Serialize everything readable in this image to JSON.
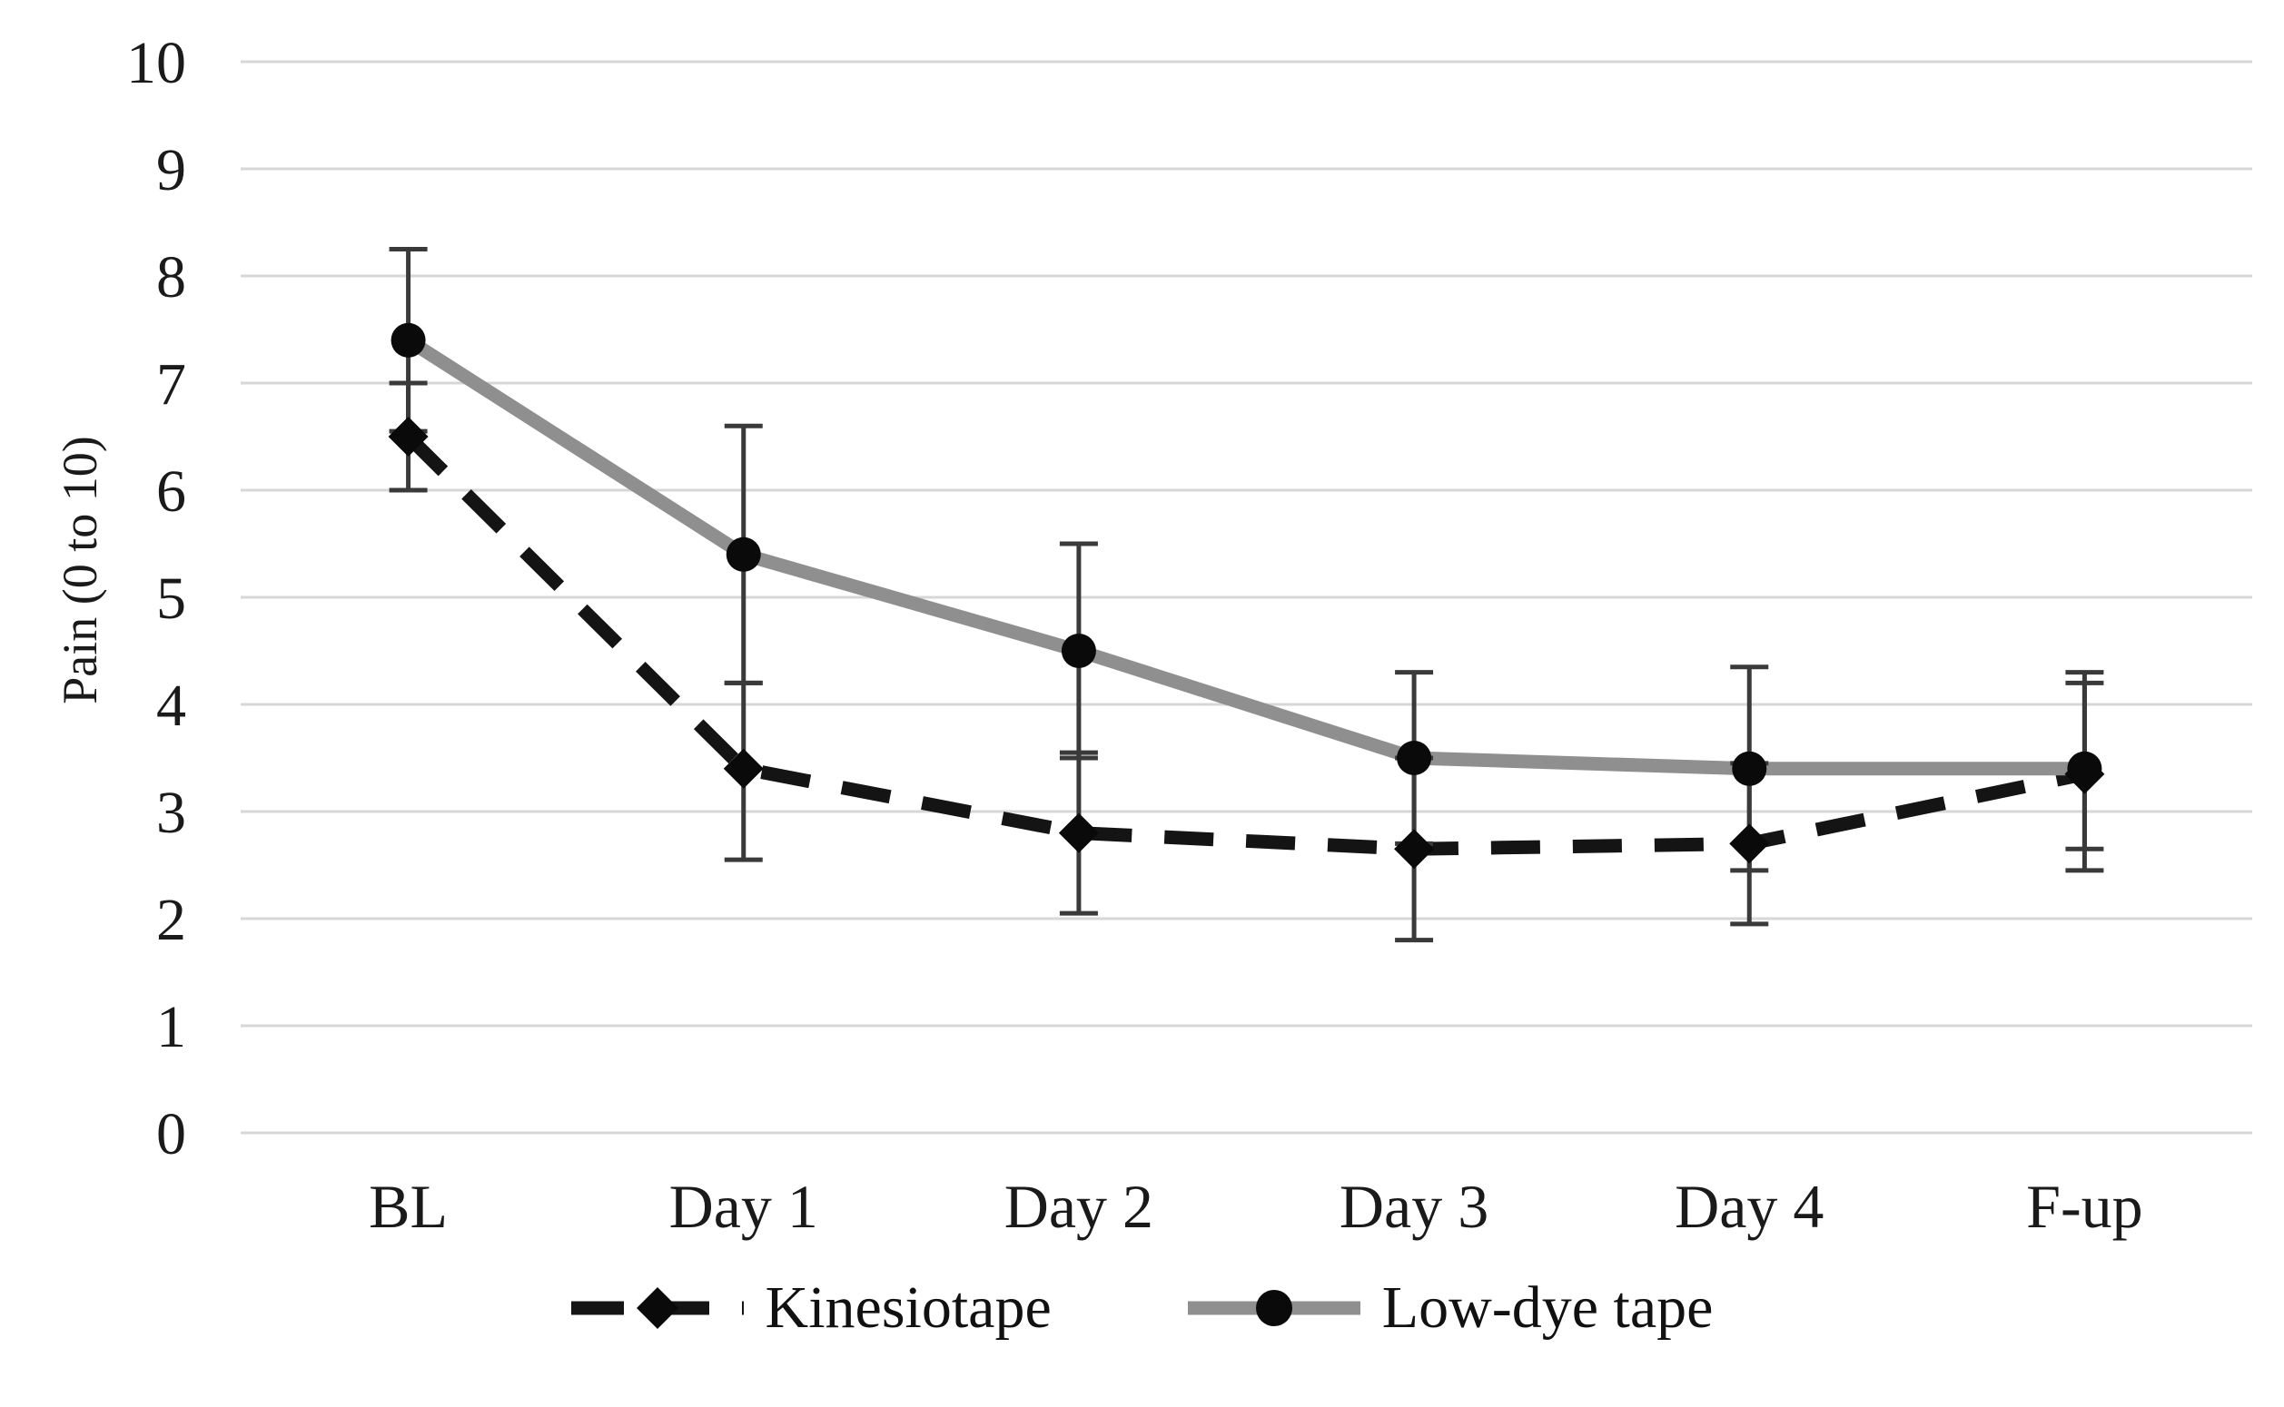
{
  "chart_data": {
    "type": "line",
    "title": "",
    "xlabel": "",
    "ylabel": "Pain (0 to 10)",
    "categories": [
      "BL",
      "Day 1",
      "Day 2",
      "Day 3",
      "Day 4",
      "F-up"
    ],
    "ylim": [
      0,
      10
    ],
    "yticks": [
      10,
      9,
      8,
      7,
      6,
      5,
      4,
      3,
      2,
      1,
      0
    ],
    "grid": "horizontal",
    "gridline_color": "#d7d7d7",
    "error_bar_color": "#3a3a3a",
    "background": "#ffffff",
    "legend_position": "bottom",
    "series": [
      {
        "name": "Kinesiotape",
        "style": "dashed",
        "color": "#141414",
        "marker": "diamond",
        "marker_color": "#0a0a0a",
        "values": [
          6.5,
          3.4,
          2.8,
          2.65,
          2.7,
          3.35
        ],
        "error_low": [
          6.0,
          2.55,
          2.05,
          1.8,
          1.95,
          2.65
        ],
        "error_high": [
          7.0,
          4.2,
          3.55,
          3.5,
          3.45,
          4.2
        ]
      },
      {
        "name": "Low-dye tape",
        "style": "solid",
        "color": "#8f8f8f",
        "marker": "circle",
        "marker_color": "#0a0a0a",
        "values": [
          7.4,
          5.4,
          4.5,
          3.5,
          3.4,
          3.4
        ],
        "error_low": [
          6.55,
          4.2,
          3.5,
          2.7,
          2.45,
          2.45
        ],
        "error_high": [
          8.25,
          6.6,
          5.5,
          4.3,
          4.35,
          4.3
        ]
      }
    ]
  }
}
